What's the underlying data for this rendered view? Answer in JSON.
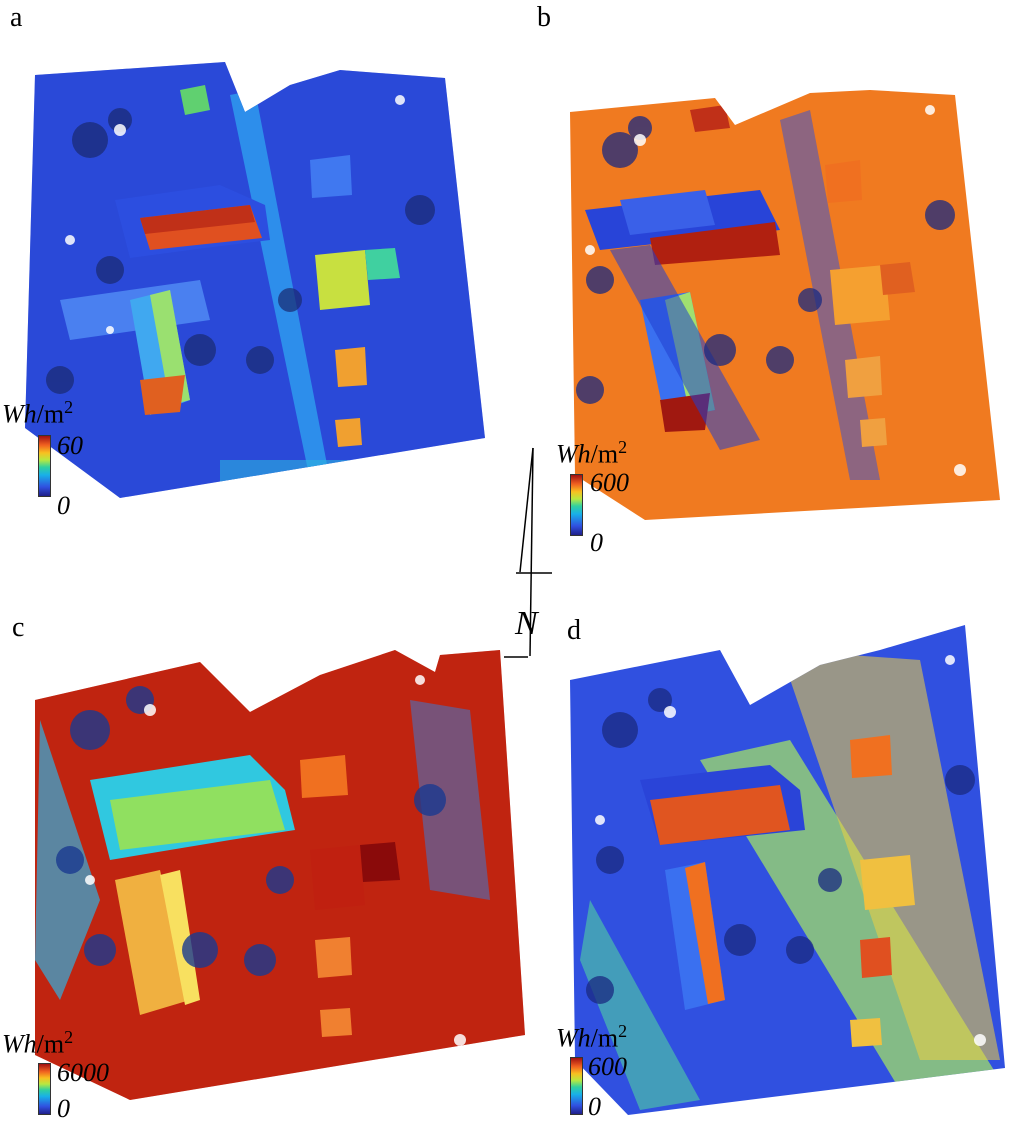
{
  "panels": [
    {
      "label": "a",
      "unit_main": "Wh",
      "unit_suffix": "/m",
      "unit_sup": "2",
      "max": "60",
      "min": "0"
    },
    {
      "label": "b",
      "unit_main": "Wh",
      "unit_suffix": "/m",
      "unit_sup": "2",
      "max": "600",
      "min": "0"
    },
    {
      "label": "c",
      "unit_main": "Wh",
      "unit_suffix": "/m",
      "unit_sup": "2",
      "max": "6000",
      "min": "0"
    },
    {
      "label": "d",
      "unit_main": "Wh",
      "unit_suffix": "/m",
      "unit_sup": "2",
      "max": "600",
      "min": "0"
    }
  ],
  "north_arrow": {
    "label": "N"
  },
  "colors": {
    "low": "#20208a",
    "blue": "#3050e0",
    "cyan": "#18b0e8",
    "green": "#30d0a0",
    "yellow": "#f8c020",
    "orange": "#f07a20",
    "red": "#c02010",
    "white": "#ffffff"
  }
}
